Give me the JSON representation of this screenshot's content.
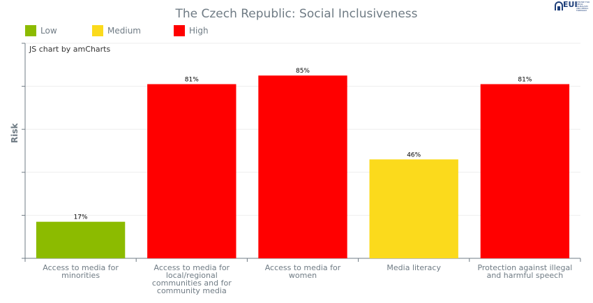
{
  "title": "The Czech Republic: Social Inclusiveness",
  "logo": {
    "mark": "EUI",
    "small_text": "CENTRE FOR MEDIA PLURALISM AND MEDIA FREEDOM"
  },
  "credit": "JS chart by amCharts",
  "legend": [
    {
      "label": "Low",
      "color": "#8cbb00"
    },
    {
      "label": "Medium",
      "color": "#fbda1c"
    },
    {
      "label": "High",
      "color": "#ff0000"
    }
  ],
  "chart_data": {
    "type": "bar",
    "title": "The Czech Republic: Social Inclusiveness",
    "xlabel": "",
    "ylabel": "Risk",
    "ylim": [
      0,
      100
    ],
    "grid": true,
    "legend_position": "top-left",
    "categories": [
      "Access to media for minorities",
      "Access to media for local/regional communities and for community media",
      "Access to media for women",
      "Media literacy",
      "Protection against illegal and harmful speech"
    ],
    "values": [
      17,
      81,
      85,
      46,
      81
    ],
    "value_labels": [
      "17%",
      "81%",
      "85%",
      "46%",
      "81%"
    ],
    "risk_levels": [
      "Low",
      "High",
      "High",
      "Medium",
      "High"
    ],
    "colors": [
      "#8cbb00",
      "#ff0000",
      "#ff0000",
      "#fbda1c",
      "#ff0000"
    ]
  }
}
